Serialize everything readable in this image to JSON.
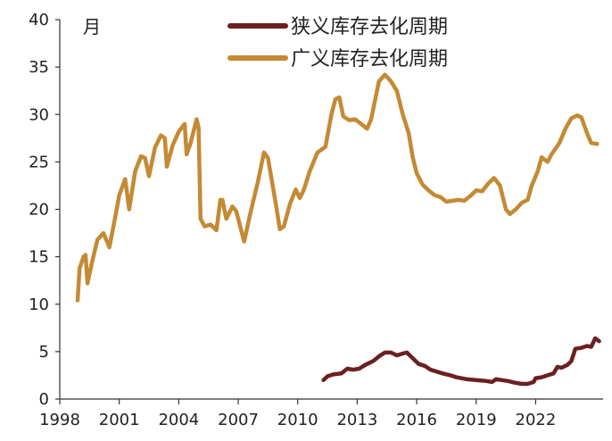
{
  "chart_data": {
    "type": "line",
    "ylabel": "月",
    "ylim": [
      0,
      40
    ],
    "y_ticks": [
      "0",
      "5",
      "10",
      "15",
      "20",
      "25",
      "30",
      "35",
      "40"
    ],
    "xlim": [
      1998,
      2025.4
    ],
    "x_ticks": [
      "1998",
      "2001",
      "2004",
      "2007",
      "2010",
      "2013",
      "2016",
      "2019",
      "2022"
    ],
    "grid": false,
    "legend_position": "top-right",
    "series": [
      {
        "name": "狭义库存去化周期",
        "color": "#6b2020",
        "points": [
          [
            2011.3,
            2.0
          ],
          [
            2011.5,
            2.4
          ],
          [
            2011.8,
            2.6
          ],
          [
            2012.2,
            2.7
          ],
          [
            2012.5,
            3.2
          ],
          [
            2012.8,
            3.1
          ],
          [
            2013.1,
            3.2
          ],
          [
            2013.4,
            3.6
          ],
          [
            2013.8,
            4.0
          ],
          [
            2014.1,
            4.5
          ],
          [
            2014.4,
            4.9
          ],
          [
            2014.7,
            4.9
          ],
          [
            2015.0,
            4.6
          ],
          [
            2015.3,
            4.8
          ],
          [
            2015.5,
            4.9
          ],
          [
            2015.8,
            4.3
          ],
          [
            2016.1,
            3.7
          ],
          [
            2016.4,
            3.5
          ],
          [
            2016.7,
            3.1
          ],
          [
            2017.0,
            2.9
          ],
          [
            2017.3,
            2.7
          ],
          [
            2017.7,
            2.5
          ],
          [
            2018.0,
            2.3
          ],
          [
            2018.5,
            2.1
          ],
          [
            2019.0,
            2.0
          ],
          [
            2019.5,
            1.9
          ],
          [
            2019.8,
            1.8
          ],
          [
            2020.0,
            2.1
          ],
          [
            2020.3,
            2.0
          ],
          [
            2020.6,
            1.9
          ],
          [
            2021.0,
            1.7
          ],
          [
            2021.3,
            1.6
          ],
          [
            2021.6,
            1.6
          ],
          [
            2021.9,
            1.8
          ],
          [
            2022.0,
            2.2
          ],
          [
            2022.3,
            2.3
          ],
          [
            2022.6,
            2.5
          ],
          [
            2022.9,
            2.7
          ],
          [
            2023.1,
            3.4
          ],
          [
            2023.3,
            3.3
          ],
          [
            2023.6,
            3.6
          ],
          [
            2023.8,
            4.0
          ],
          [
            2024.0,
            5.3
          ],
          [
            2024.3,
            5.4
          ],
          [
            2024.6,
            5.6
          ],
          [
            2024.8,
            5.5
          ],
          [
            2025.0,
            6.4
          ],
          [
            2025.2,
            6.1
          ]
        ]
      },
      {
        "name": "广义库存去化周期",
        "color": "#c48a34",
        "points": [
          [
            1998.9,
            10.4
          ],
          [
            1999.0,
            13.8
          ],
          [
            1999.2,
            15.0
          ],
          [
            1999.3,
            15.2
          ],
          [
            1999.4,
            12.2
          ],
          [
            1999.6,
            14.2
          ],
          [
            1999.9,
            16.8
          ],
          [
            2000.2,
            17.5
          ],
          [
            2000.5,
            16.0
          ],
          [
            2000.8,
            19.2
          ],
          [
            2001.0,
            21.5
          ],
          [
            2001.3,
            23.2
          ],
          [
            2001.5,
            20.0
          ],
          [
            2001.8,
            24.0
          ],
          [
            2002.1,
            25.6
          ],
          [
            2002.3,
            25.4
          ],
          [
            2002.5,
            23.5
          ],
          [
            2002.8,
            26.5
          ],
          [
            2003.1,
            27.8
          ],
          [
            2003.3,
            27.5
          ],
          [
            2003.4,
            24.5
          ],
          [
            2003.7,
            26.8
          ],
          [
            2004.0,
            28.2
          ],
          [
            2004.3,
            29.0
          ],
          [
            2004.4,
            25.8
          ],
          [
            2004.6,
            27.0
          ],
          [
            2004.9,
            29.5
          ],
          [
            2005.0,
            28.6
          ],
          [
            2005.1,
            19.0
          ],
          [
            2005.3,
            18.2
          ],
          [
            2005.6,
            18.4
          ],
          [
            2005.9,
            17.8
          ],
          [
            2006.1,
            21.0
          ],
          [
            2006.2,
            21.0
          ],
          [
            2006.4,
            19.0
          ],
          [
            2006.7,
            20.3
          ],
          [
            2006.9,
            19.8
          ],
          [
            2007.3,
            16.6
          ],
          [
            2007.6,
            19.5
          ],
          [
            2008.0,
            23.0
          ],
          [
            2008.3,
            26.0
          ],
          [
            2008.5,
            25.4
          ],
          [
            2008.9,
            20.5
          ],
          [
            2009.1,
            17.9
          ],
          [
            2009.3,
            18.2
          ],
          [
            2009.6,
            20.5
          ],
          [
            2009.9,
            22.1
          ],
          [
            2010.1,
            21.2
          ],
          [
            2010.3,
            22.0
          ],
          [
            2010.6,
            24.0
          ],
          [
            2011.0,
            26.0
          ],
          [
            2011.4,
            26.6
          ],
          [
            2011.7,
            30.0
          ],
          [
            2011.9,
            31.6
          ],
          [
            2012.1,
            31.8
          ],
          [
            2012.3,
            29.8
          ],
          [
            2012.6,
            29.4
          ],
          [
            2012.9,
            29.5
          ],
          [
            2013.2,
            29.0
          ],
          [
            2013.5,
            28.5
          ],
          [
            2013.7,
            29.5
          ],
          [
            2013.9,
            31.5
          ],
          [
            2014.1,
            33.5
          ],
          [
            2014.4,
            34.2
          ],
          [
            2014.7,
            33.5
          ],
          [
            2015.0,
            32.5
          ],
          [
            2015.3,
            30.0
          ],
          [
            2015.6,
            28.0
          ],
          [
            2015.8,
            25.5
          ],
          [
            2016.0,
            23.8
          ],
          [
            2016.3,
            22.6
          ],
          [
            2016.6,
            22.0
          ],
          [
            2016.9,
            21.5
          ],
          [
            2017.2,
            21.3
          ],
          [
            2017.5,
            20.8
          ],
          [
            2017.8,
            20.9
          ],
          [
            2018.1,
            21.0
          ],
          [
            2018.4,
            20.9
          ],
          [
            2018.7,
            21.4
          ],
          [
            2019.0,
            22.0
          ],
          [
            2019.3,
            21.9
          ],
          [
            2019.6,
            22.7
          ],
          [
            2019.9,
            23.3
          ],
          [
            2020.2,
            22.5
          ],
          [
            2020.5,
            20.0
          ],
          [
            2020.7,
            19.5
          ],
          [
            2021.0,
            20.0
          ],
          [
            2021.3,
            20.7
          ],
          [
            2021.6,
            21.0
          ],
          [
            2021.8,
            22.5
          ],
          [
            2022.1,
            24.0
          ],
          [
            2022.3,
            25.5
          ],
          [
            2022.6,
            25.0
          ],
          [
            2022.8,
            25.8
          ],
          [
            2023.2,
            27.0
          ],
          [
            2023.5,
            28.5
          ],
          [
            2023.8,
            29.6
          ],
          [
            2024.1,
            29.9
          ],
          [
            2024.3,
            29.7
          ],
          [
            2024.6,
            28.0
          ],
          [
            2024.8,
            27.0
          ],
          [
            2025.1,
            26.9
          ]
        ]
      }
    ]
  }
}
